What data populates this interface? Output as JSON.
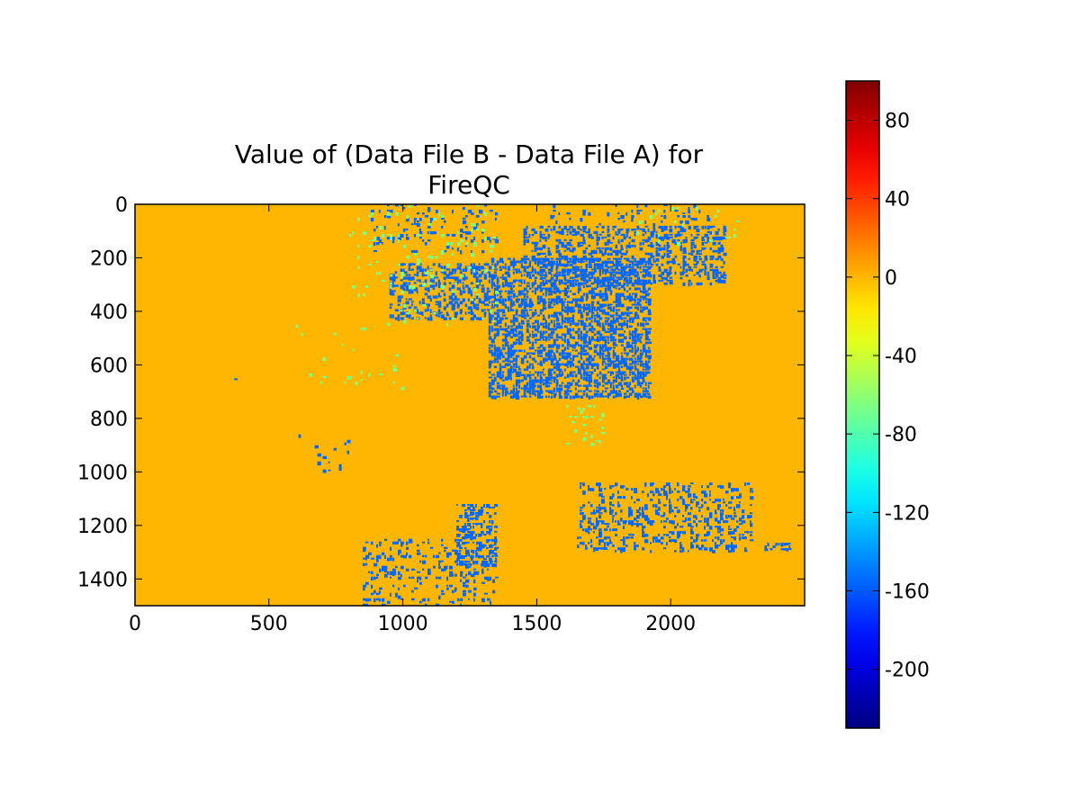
{
  "chart_data": {
    "type": "heatmap",
    "title": "Value of (Data File B - Data File A) for FireQC",
    "title_lines": [
      "Value of (Data File B - Data File A) for",
      "FireQC"
    ],
    "xlabel": "",
    "ylabel": "",
    "xlim": [
      0,
      2500
    ],
    "ylim": [
      1500,
      0
    ],
    "x_ticks": [
      0,
      500,
      1000,
      1500,
      2000
    ],
    "x_tick_labels": [
      "0",
      "500",
      "1000",
      "1500",
      "2000"
    ],
    "y_ticks": [
      0,
      200,
      400,
      600,
      800,
      1000,
      1200,
      1400
    ],
    "y_tick_labels": [
      "0",
      "200",
      "400",
      "600",
      "800",
      "1000",
      "1200",
      "1400"
    ],
    "grid": false,
    "background_value": 0,
    "colorbar": {
      "colormap": "jet",
      "vmin": -230,
      "vmax": 100,
      "ticks": [
        80,
        40,
        0,
        -40,
        -80,
        -120,
        -160,
        -200
      ],
      "tick_labels": [
        "80",
        "40",
        "0",
        "-40",
        "-80",
        "-120",
        "-160",
        "-200"
      ]
    },
    "dominant_values": [
      {
        "value": 0,
        "color": "#ffc800",
        "description": "background"
      },
      {
        "value": -155,
        "color": "#0080ff",
        "description": "main differences"
      },
      {
        "value": -65,
        "color": "#70ff88",
        "description": "minor differences"
      }
    ],
    "regions": [
      {
        "value": -155,
        "x": [
          1320,
          1920
        ],
        "y": [
          200,
          720
        ],
        "density": 0.55
      },
      {
        "value": -155,
        "x": [
          950,
          1320
        ],
        "y": [
          220,
          430
        ],
        "density": 0.4
      },
      {
        "value": -155,
        "x": [
          1450,
          2200
        ],
        "y": [
          80,
          300
        ],
        "density": 0.35
      },
      {
        "value": -155,
        "x": [
          880,
          1350
        ],
        "y": [
          0,
          180
        ],
        "density": 0.12
      },
      {
        "value": -155,
        "x": [
          1550,
          2150
        ],
        "y": [
          0,
          100
        ],
        "density": 0.1
      },
      {
        "value": -155,
        "x": [
          1200,
          1350
        ],
        "y": [
          1120,
          1350
        ],
        "density": 0.45
      },
      {
        "value": -155,
        "x": [
          850,
          1350
        ],
        "y": [
          1250,
          1500
        ],
        "density": 0.18
      },
      {
        "value": -155,
        "x": [
          1650,
          2300
        ],
        "y": [
          1040,
          1300
        ],
        "density": 0.25
      },
      {
        "value": -155,
        "x": [
          2350,
          2450
        ],
        "y": [
          1265,
          1290
        ],
        "density": 0.6
      },
      {
        "value": -155,
        "x": [
          600,
          800
        ],
        "y": [
          850,
          1000
        ],
        "density": 0.06
      },
      {
        "value": -155,
        "x": [
          320,
          420
        ],
        "y": [
          650,
          700
        ],
        "density": 0.08
      },
      {
        "value": -65,
        "x": [
          800,
          1350
        ],
        "y": [
          0,
          450
        ],
        "density": 0.04
      },
      {
        "value": -65,
        "x": [
          1600,
          1750
        ],
        "y": [
          750,
          900
        ],
        "density": 0.12
      },
      {
        "value": -65,
        "x": [
          1750,
          2250
        ],
        "y": [
          0,
          150
        ],
        "density": 0.02
      },
      {
        "value": -65,
        "x": [
          600,
          1000
        ],
        "y": [
          450,
          700
        ],
        "density": 0.02
      }
    ]
  }
}
